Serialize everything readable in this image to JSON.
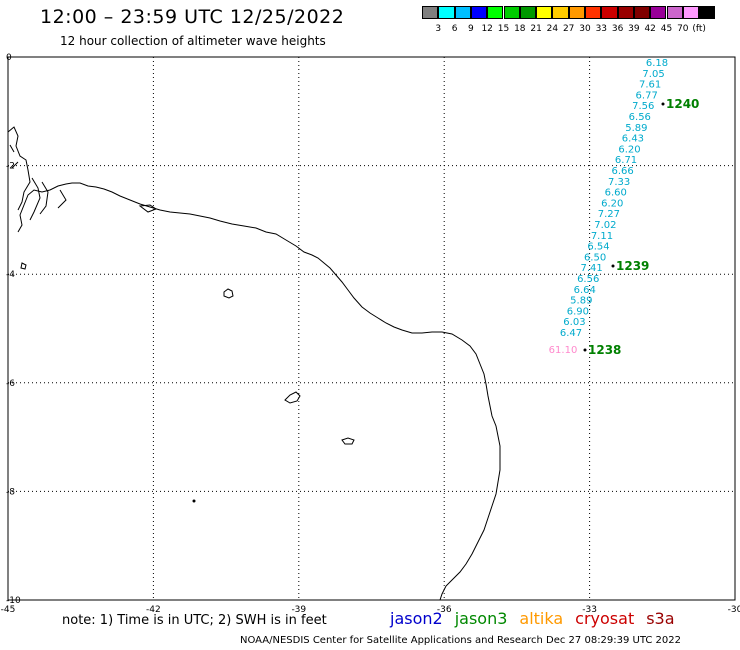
{
  "header": {
    "title": "12:00 – 23:59 UTC 12/25/2022",
    "subtitle": "12 hour collection of altimeter wave heights"
  },
  "scale": {
    "colors": [
      "#808080",
      "#00ffff",
      "#00bfff",
      "#0000ff",
      "#00ff00",
      "#00cc00",
      "#009900",
      "#ffff00",
      "#ffcc00",
      "#ff9900",
      "#ff3300",
      "#cc0000",
      "#990000",
      "#800000",
      "#990099",
      "#cc66cc",
      "#ff99ff",
      "#000000"
    ],
    "ticks": [
      "3",
      "6",
      "9",
      "12",
      "15",
      "18",
      "21",
      "24",
      "27",
      "30",
      "33",
      "36",
      "39",
      "42",
      "45",
      "70",
      "(ft)"
    ]
  },
  "map": {
    "x_ticks": [
      "-45",
      "-42",
      "-39",
      "-36",
      "-33",
      "-30"
    ],
    "y_ticks": [
      "0",
      "-2",
      "-4",
      "-6",
      "-8",
      "-10"
    ],
    "track_color": "#00aacc",
    "wave_heights": [
      "6.18",
      "7.05",
      "7.61",
      "6.77",
      "7.56",
      "6.56",
      "5.89",
      "6.43",
      "6.20",
      "6.71",
      "6.66",
      "7.33",
      "6.60",
      "6.20",
      "7.27",
      "7.02",
      "7.11",
      "6.54",
      "6.50",
      "7.41",
      "6.56",
      "6.64",
      "5.89",
      "6.90",
      "6.03",
      "6.47"
    ],
    "outlier": {
      "value": "61.10",
      "color": "#ff88cc"
    },
    "time_labels": [
      {
        "text": "1240",
        "color": "#008000"
      },
      {
        "text": "1239",
        "color": "#008000"
      },
      {
        "text": "1238",
        "color": "#008000"
      }
    ]
  },
  "footer": {
    "note": "note: 1) Time is in UTC; 2) SWH is in feet",
    "credit": "NOAA/NESDIS Center for Satellite Applications and Research   Dec 27 08:29:39 UTC 2022",
    "satellites": [
      {
        "name": "jason2",
        "color": "#0000cc"
      },
      {
        "name": "jason3",
        "color": "#008800"
      },
      {
        "name": "altika",
        "color": "#ff9900"
      },
      {
        "name": "cryosat",
        "color": "#cc0000"
      },
      {
        "name": "s3a",
        "color": "#990000"
      }
    ]
  }
}
